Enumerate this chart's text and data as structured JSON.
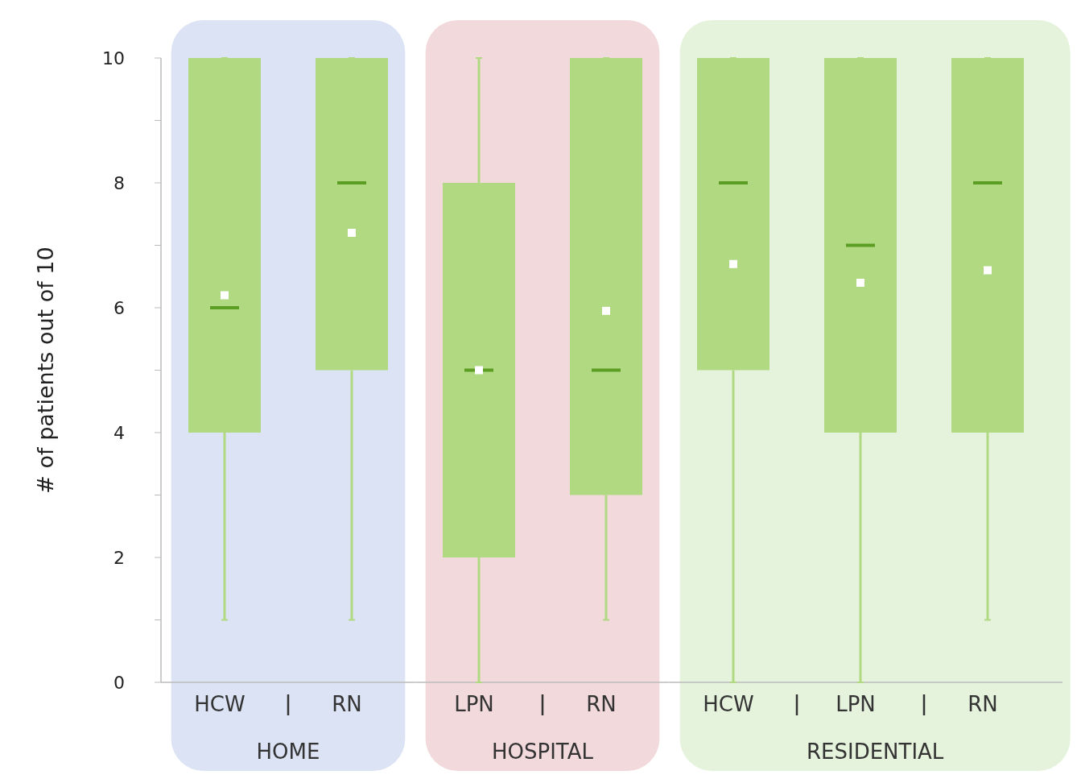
{
  "chart_data": [
    {
      "type": "box",
      "xlabel": "HOME",
      "ylabel": "# of patients out of 10",
      "categories": [
        "HCW",
        "RN"
      ],
      "boxes": [
        {
          "low": 1,
          "q1": 4,
          "median": 6,
          "q3": 10,
          "high": 10,
          "mean": 6.2
        },
        {
          "low": 1,
          "q1": 5,
          "median": 8,
          "q3": 10,
          "high": 10,
          "mean": 7.2
        }
      ],
      "color": "#b0d982",
      "ylim": [
        0,
        10
      ],
      "yticks": [
        0,
        {
          "value": 1,
          "label": null
        },
        2,
        {
          "value": 3,
          "label": null
        },
        4,
        {
          "value": 5,
          "label": null
        },
        6,
        {
          "value": 7,
          "label": null
        },
        8,
        {
          "value": 9,
          "label": null
        },
        10
      ]
    },
    {
      "type": "box",
      "xlabel": "HOSPITAL",
      "categories": [
        "LPN",
        "RN"
      ],
      "boxes": [
        {
          "low": 0,
          "q1": 2,
          "median": 5,
          "q3": 8,
          "high": 10,
          "mean": 5
        },
        {
          "low": 1,
          "q1": 3,
          "median": 5,
          "q3": 10,
          "high": 10,
          "mean": 5.95
        }
      ],
      "color": "#b0d982",
      "ylim": [
        0,
        10
      ],
      "tick_labels": "x"
    },
    {
      "type": "box",
      "xlabel": "RESIDENTIAL",
      "categories": [
        "HCW",
        "LPN",
        "RN"
      ],
      "boxes": [
        {
          "low": 0,
          "q1": 5,
          "median": 8,
          "q3": 10,
          "high": 10,
          "mean": 6.7
        },
        {
          "low": 0,
          "q1": 4,
          "median": 7,
          "q3": 10,
          "high": 10,
          "mean": 6.4
        },
        {
          "low": 1,
          "q1": 4,
          "median": 8,
          "q3": 10,
          "high": 10,
          "mean": 6.6
        }
      ],
      "color": "#b0d982",
      "ylim": [
        0,
        10
      ],
      "tick_labels": "x"
    }
  ]
}
